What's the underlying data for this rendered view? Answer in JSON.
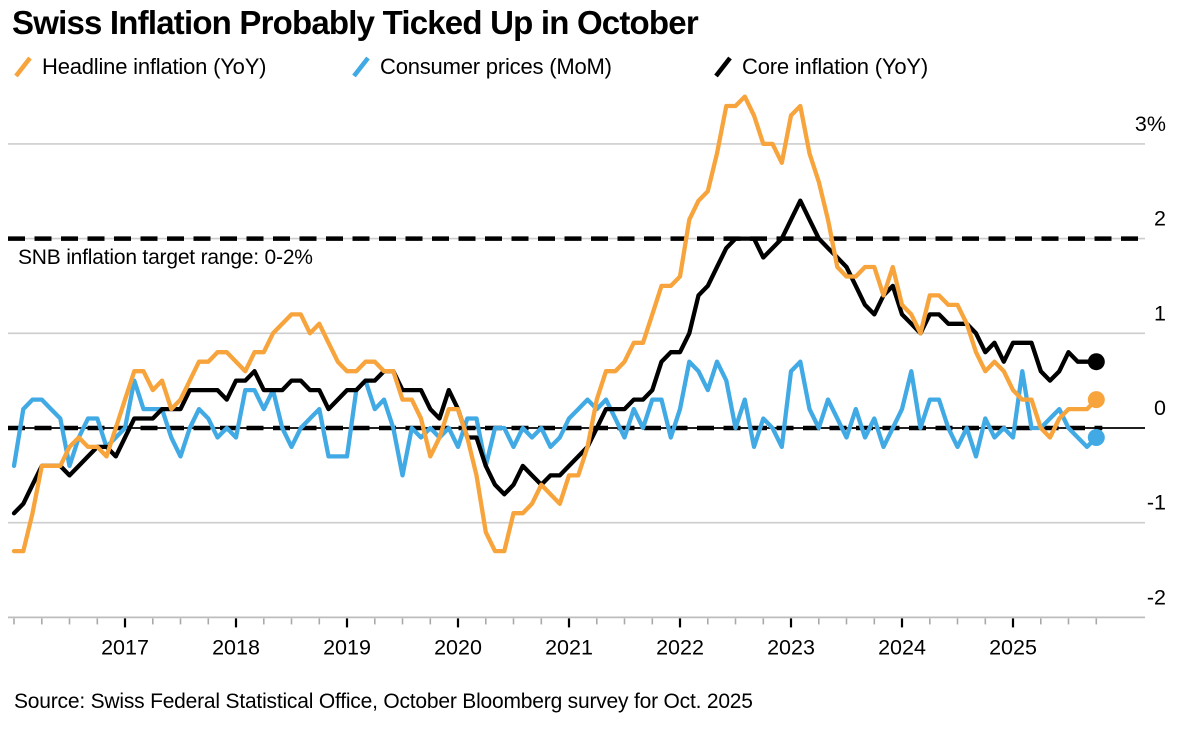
{
  "header": {
    "title": "Swiss Inflation Probably Ticked Up in October",
    "legend": [
      {
        "label": "Headline inflation (YoY)",
        "color": "#F7A43C"
      },
      {
        "label": "Consumer prices (MoM)",
        "color": "#41AAE5"
      },
      {
        "label": "Core inflation (YoY)",
        "color": "#000000"
      }
    ]
  },
  "annotation": {
    "snb_target_label": "SNB inflation target range: 0-2%"
  },
  "footer": {
    "source": "Source: Swiss Federal Statistical Office, October Bloomberg survey for Oct. 2025"
  },
  "colors": {
    "orange": "#F7A43C",
    "blue": "#41AAE5",
    "black": "#000000",
    "gridline": "#CDCDCD",
    "axis": "#BDBDBD",
    "minor_tick": "#A9A9A9",
    "year_tick": "#000000"
  },
  "chart_data": {
    "type": "line",
    "title": "Swiss Inflation Probably Ticked Up in October",
    "frequency": "monthly",
    "x_start": "2016-01",
    "x_end": "2025-10",
    "x_tick_years": [
      "2017",
      "2018",
      "2019",
      "2020",
      "2021",
      "2022",
      "2023",
      "2024",
      "2025"
    ],
    "y_axis": {
      "unit": "%",
      "ylim": [
        -2,
        3.5
      ],
      "ticks": [
        {
          "label": "3%",
          "value": 3
        },
        {
          "label": "2",
          "value": 2
        },
        {
          "label": "1",
          "value": 1
        },
        {
          "label": "0",
          "value": 0
        },
        {
          "label": "-1",
          "value": -1
        },
        {
          "label": "-2",
          "value": -2
        }
      ]
    },
    "target_lines": [
      {
        "value": 2,
        "style": "dashed",
        "label": "SNB inflation target range: 0-2%"
      },
      {
        "value": 0,
        "style": "dashed",
        "label": ""
      }
    ],
    "series": [
      {
        "name": "Consumer prices (MoM)",
        "color": "#41AAE5",
        "end_dot": true,
        "values": [
          -0.4,
          0.2,
          0.3,
          0.3,
          0.2,
          0.1,
          -0.4,
          -0.1,
          0.1,
          0.1,
          -0.2,
          -0.1,
          0.0,
          0.5,
          0.2,
          0.2,
          0.2,
          -0.1,
          -0.3,
          0.0,
          0.2,
          0.1,
          -0.1,
          0.0,
          -0.1,
          0.4,
          0.4,
          0.2,
          0.4,
          0.0,
          -0.2,
          0.0,
          0.1,
          0.2,
          -0.3,
          -0.3,
          -0.3,
          0.4,
          0.5,
          0.2,
          0.3,
          0.0,
          -0.5,
          0.0,
          -0.1,
          0.0,
          -0.1,
          0.0,
          -0.2,
          0.1,
          0.1,
          -0.4,
          0.0,
          0.0,
          -0.2,
          0.0,
          -0.1,
          0.0,
          -0.2,
          -0.1,
          0.1,
          0.2,
          0.3,
          0.2,
          0.3,
          0.1,
          -0.1,
          0.2,
          0.0,
          0.3,
          0.3,
          -0.1,
          0.2,
          0.7,
          0.6,
          0.4,
          0.7,
          0.5,
          0.0,
          0.3,
          -0.2,
          0.1,
          0.0,
          -0.2,
          0.6,
          0.7,
          0.2,
          0.0,
          0.3,
          0.1,
          -0.1,
          0.2,
          -0.1,
          0.1,
          -0.2,
          0.0,
          0.2,
          0.6,
          0.0,
          0.3,
          0.3,
          0.0,
          -0.2,
          0.0,
          -0.3,
          0.1,
          -0.1,
          0.0,
          -0.1,
          0.6,
          0.0,
          0.0,
          0.1,
          0.2,
          0.0,
          -0.1,
          -0.2,
          -0.1
        ]
      },
      {
        "name": "Core inflation (YoY)",
        "color": "#000000",
        "end_dot": true,
        "values": [
          -0.9,
          -0.8,
          -0.6,
          -0.4,
          -0.4,
          -0.4,
          -0.5,
          -0.4,
          -0.3,
          -0.2,
          -0.2,
          -0.3,
          -0.1,
          0.1,
          0.1,
          0.1,
          0.2,
          0.2,
          0.2,
          0.4,
          0.4,
          0.4,
          0.4,
          0.3,
          0.5,
          0.5,
          0.6,
          0.4,
          0.4,
          0.4,
          0.5,
          0.5,
          0.4,
          0.4,
          0.2,
          0.3,
          0.4,
          0.4,
          0.5,
          0.5,
          0.6,
          0.6,
          0.4,
          0.4,
          0.4,
          0.2,
          0.1,
          0.4,
          0.2,
          -0.1,
          -0.1,
          -0.4,
          -0.6,
          -0.7,
          -0.6,
          -0.4,
          -0.5,
          -0.6,
          -0.5,
          -0.5,
          -0.4,
          -0.3,
          -0.2,
          0.0,
          0.2,
          0.2,
          0.2,
          0.3,
          0.3,
          0.4,
          0.7,
          0.8,
          0.8,
          1.0,
          1.4,
          1.5,
          1.7,
          1.9,
          2.0,
          2.0,
          2.0,
          1.8,
          1.9,
          2.0,
          2.2,
          2.4,
          2.2,
          2.0,
          1.9,
          1.8,
          1.7,
          1.5,
          1.3,
          1.2,
          1.4,
          1.5,
          1.2,
          1.1,
          1.0,
          1.2,
          1.2,
          1.1,
          1.1,
          1.1,
          1.0,
          0.8,
          0.9,
          0.7,
          0.9,
          0.9,
          0.9,
          0.6,
          0.5,
          0.6,
          0.8,
          0.7,
          0.7,
          0.7
        ]
      },
      {
        "name": "Headline inflation (YoY)",
        "color": "#F7A43C",
        "end_dot": true,
        "values": [
          -1.3,
          -1.3,
          -0.9,
          -0.4,
          -0.4,
          -0.4,
          -0.2,
          -0.1,
          -0.2,
          -0.2,
          -0.3,
          0.0,
          0.3,
          0.6,
          0.6,
          0.4,
          0.5,
          0.2,
          0.3,
          0.5,
          0.7,
          0.7,
          0.8,
          0.8,
          0.7,
          0.6,
          0.8,
          0.8,
          1.0,
          1.1,
          1.2,
          1.2,
          1.0,
          1.1,
          0.9,
          0.7,
          0.6,
          0.6,
          0.7,
          0.7,
          0.6,
          0.6,
          0.3,
          0.3,
          0.1,
          -0.3,
          -0.1,
          0.2,
          0.2,
          -0.1,
          -0.5,
          -1.1,
          -1.3,
          -1.3,
          -0.9,
          -0.9,
          -0.8,
          -0.6,
          -0.7,
          -0.8,
          -0.5,
          -0.5,
          -0.2,
          0.3,
          0.6,
          0.6,
          0.7,
          0.9,
          0.9,
          1.2,
          1.5,
          1.5,
          1.6,
          2.2,
          2.4,
          2.5,
          2.9,
          3.4,
          3.4,
          3.5,
          3.3,
          3.0,
          3.0,
          2.8,
          3.3,
          3.4,
          2.9,
          2.6,
          2.2,
          1.7,
          1.6,
          1.6,
          1.7,
          1.7,
          1.4,
          1.7,
          1.3,
          1.2,
          1.0,
          1.4,
          1.4,
          1.3,
          1.3,
          1.1,
          0.8,
          0.6,
          0.7,
          0.6,
          0.4,
          0.3,
          0.3,
          0.0,
          -0.1,
          0.1,
          0.2,
          0.2,
          0.2,
          0.3
        ]
      }
    ]
  }
}
